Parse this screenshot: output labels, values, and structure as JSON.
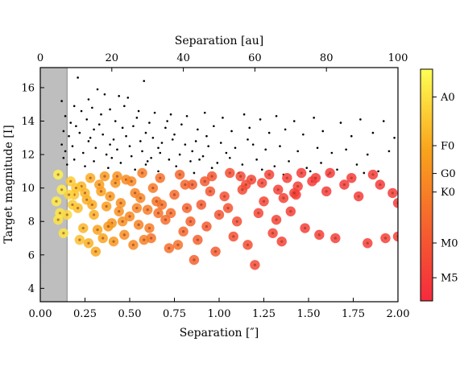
{
  "chart_data": {
    "type": "scatter",
    "xlabel": "Separation [″]",
    "x2label": "Separation [au]",
    "ylabel": "Target magnitude [I]",
    "xlim": [
      0.0,
      2.0
    ],
    "x2lim": [
      0,
      100
    ],
    "ylim": [
      3.2,
      17.2
    ],
    "xticks": [
      "0.00",
      "0.25",
      "0.50",
      "0.75",
      "1.00",
      "1.25",
      "1.50",
      "1.75",
      "2.00"
    ],
    "x2ticks": [
      "0",
      "20",
      "40",
      "60",
      "80",
      "100"
    ],
    "yticks": [
      "4",
      "6",
      "8",
      "10",
      "12",
      "14",
      "16"
    ],
    "excluded_region": {
      "x_range": [
        0.0,
        0.15
      ],
      "color": "#bebebe"
    },
    "grid": false,
    "colorbar": {
      "label_ticks": [
        "A0",
        "F0",
        "G0",
        "K0",
        "M0",
        "M5"
      ],
      "tick_positions": [
        0.12,
        0.33,
        0.45,
        0.53,
        0.75,
        0.9
      ],
      "colors": [
        "#ffff55",
        "#f9a31c",
        "#f55e2f",
        "#f52b3d"
      ]
    },
    "series": [
      {
        "kind": "companion-candidates",
        "color": "#000000",
        "points": [
          [
            0.21,
            16.6
          ],
          [
            0.58,
            16.4
          ],
          [
            0.32,
            15.9
          ],
          [
            0.36,
            15.6
          ],
          [
            0.44,
            15.5
          ],
          [
            0.12,
            15.2
          ],
          [
            0.27,
            15.3
          ],
          [
            0.49,
            15.4
          ],
          [
            0.19,
            14.9
          ],
          [
            0.23,
            14.6
          ],
          [
            0.29,
            14.8
          ],
          [
            0.39,
            14.7
          ],
          [
            0.47,
            14.9
          ],
          [
            0.55,
            14.6
          ],
          [
            0.64,
            14.5
          ],
          [
            0.73,
            14.4
          ],
          [
            0.82,
            14.3
          ],
          [
            0.92,
            14.5
          ],
          [
            1.02,
            14.2
          ],
          [
            1.14,
            14.4
          ],
          [
            1.23,
            14.1
          ],
          [
            1.32,
            14.3
          ],
          [
            1.42,
            14.0
          ],
          [
            1.53,
            14.2
          ],
          [
            1.68,
            13.9
          ],
          [
            1.79,
            14.1
          ],
          [
            1.92,
            14.0
          ],
          [
            0.14,
            14.3
          ],
          [
            0.17,
            13.9
          ],
          [
            0.26,
            14.1
          ],
          [
            0.33,
            13.8
          ],
          [
            0.42,
            14.0
          ],
          [
            0.52,
            13.7
          ],
          [
            0.61,
            13.9
          ],
          [
            0.7,
            13.6
          ],
          [
            0.79,
            13.8
          ],
          [
            0.88,
            13.5
          ],
          [
            0.97,
            13.7
          ],
          [
            1.07,
            13.4
          ],
          [
            1.17,
            13.6
          ],
          [
            1.28,
            13.3
          ],
          [
            1.37,
            13.5
          ],
          [
            1.47,
            13.2
          ],
          [
            1.58,
            13.4
          ],
          [
            1.74,
            13.1
          ],
          [
            1.86,
            13.3
          ],
          [
            1.98,
            13.0
          ],
          [
            0.13,
            13.4
          ],
          [
            0.16,
            13.1
          ],
          [
            0.22,
            13.3
          ],
          [
            0.28,
            13.0
          ],
          [
            0.35,
            13.2
          ],
          [
            0.41,
            12.9
          ],
          [
            0.48,
            13.1
          ],
          [
            0.56,
            12.8
          ],
          [
            0.63,
            13.0
          ],
          [
            0.68,
            12.7
          ],
          [
            0.74,
            12.9
          ],
          [
            0.81,
            12.6
          ],
          [
            0.87,
            12.8
          ],
          [
            0.94,
            12.5
          ],
          [
            1.01,
            12.7
          ],
          [
            1.09,
            12.4
          ],
          [
            1.19,
            12.6
          ],
          [
            1.26,
            12.3
          ],
          [
            1.34,
            12.5
          ],
          [
            1.44,
            12.2
          ],
          [
            1.55,
            12.4
          ],
          [
            1.63,
            12.1
          ],
          [
            1.71,
            12.3
          ],
          [
            1.83,
            12.0
          ],
          [
            1.95,
            12.2
          ],
          [
            0.12,
            12.6
          ],
          [
            0.14,
            12.2
          ],
          [
            0.18,
            12.5
          ],
          [
            0.24,
            12.1
          ],
          [
            0.31,
            12.4
          ],
          [
            0.37,
            12.0
          ],
          [
            0.43,
            12.3
          ],
          [
            0.51,
            11.9
          ],
          [
            0.57,
            12.2
          ],
          [
            0.62,
            11.8
          ],
          [
            0.67,
            12.1
          ],
          [
            0.72,
            11.7
          ],
          [
            0.78,
            12.0
          ],
          [
            0.84,
            11.6
          ],
          [
            0.91,
            11.9
          ],
          [
            0.99,
            11.5
          ],
          [
            1.06,
            11.8
          ],
          [
            1.13,
            11.4
          ],
          [
            1.21,
            11.7
          ],
          [
            1.31,
            11.3
          ],
          [
            1.39,
            11.6
          ],
          [
            1.49,
            11.2
          ],
          [
            1.57,
            11.5
          ],
          [
            1.66,
            11.1
          ],
          [
            1.77,
            11.4
          ],
          [
            1.89,
            11.0
          ],
          [
            0.13,
            11.8
          ],
          [
            0.15,
            11.4
          ],
          [
            0.19,
            11.7
          ],
          [
            0.25,
            11.3
          ],
          [
            0.3,
            11.6
          ],
          [
            0.38,
            11.2
          ],
          [
            0.45,
            11.5
          ],
          [
            0.53,
            11.1
          ],
          [
            0.59,
            11.4
          ],
          [
            0.66,
            11.0
          ],
          [
            0.76,
            11.3
          ],
          [
            0.86,
            10.9
          ],
          [
            0.96,
            11.2
          ],
          [
            1.11,
            10.9
          ],
          [
            1.24,
            11.1
          ],
          [
            1.36,
            10.8
          ],
          [
            1.51,
            11.0
          ],
          [
            1.61,
            10.8
          ],
          [
            1.81,
            10.9
          ],
          [
            0.46,
            13.6
          ],
          [
            0.54,
            14.2
          ],
          [
            0.39,
            12.6
          ],
          [
            0.27,
            12.8
          ],
          [
            0.34,
            14.4
          ],
          [
            0.59,
            13.3
          ],
          [
            0.66,
            12.4
          ],
          [
            0.71,
            14.0
          ],
          [
            0.85,
            12.2
          ],
          [
            0.93,
            13.1
          ],
          [
            1.04,
            12.1
          ],
          [
            0.2,
            13.7
          ],
          [
            0.4,
            11.8
          ],
          [
            0.5,
            12.5
          ],
          [
            0.6,
            11.6
          ],
          [
            0.75,
            13.2
          ],
          [
            0.89,
            11.7
          ],
          [
            0.3,
            13.5
          ],
          [
            1.16,
            12.9
          ]
        ]
      },
      {
        "kind": "targets",
        "points": [
          [
            0.1,
            10.8,
            0.05
          ],
          [
            0.12,
            9.9,
            0.06
          ],
          [
            0.09,
            9.2,
            0.07
          ],
          [
            0.11,
            8.5,
            0.08
          ],
          [
            0.13,
            7.3,
            0.1
          ],
          [
            0.1,
            8.1,
            0.1
          ],
          [
            0.17,
            10.4,
            0.2
          ],
          [
            0.19,
            9.6,
            0.22
          ],
          [
            0.21,
            8.8,
            0.25
          ],
          [
            0.23,
            10.1,
            0.28
          ],
          [
            0.22,
            6.9,
            0.24
          ],
          [
            0.26,
            9.3,
            0.3
          ],
          [
            0.28,
            10.6,
            0.32
          ],
          [
            0.3,
            8.4,
            0.3
          ],
          [
            0.32,
            7.5,
            0.35
          ],
          [
            0.31,
            6.2,
            0.33
          ],
          [
            0.34,
            9.8,
            0.36
          ],
          [
            0.36,
            10.7,
            0.4
          ],
          [
            0.37,
            8.9,
            0.38
          ],
          [
            0.39,
            9.5,
            0.4
          ],
          [
            0.4,
            7.9,
            0.42
          ],
          [
            0.42,
            10.3,
            0.42
          ],
          [
            0.44,
            8.6,
            0.44
          ],
          [
            0.45,
            9.1,
            0.45
          ],
          [
            0.47,
            7.2,
            0.46
          ],
          [
            0.48,
            10.5,
            0.47
          ],
          [
            0.5,
            8.3,
            0.48
          ],
          [
            0.52,
            6.6,
            0.48
          ],
          [
            0.53,
            9.7,
            0.5
          ],
          [
            0.55,
            7.8,
            0.52
          ],
          [
            0.57,
            10.9,
            0.55
          ],
          [
            0.6,
            8.7,
            0.55
          ],
          [
            0.62,
            7.0,
            0.58
          ],
          [
            0.65,
            9.2,
            0.58
          ],
          [
            0.67,
            10.6,
            0.6
          ],
          [
            0.7,
            8.1,
            0.62
          ],
          [
            0.72,
            6.4,
            0.62
          ],
          [
            0.75,
            9.6,
            0.64
          ],
          [
            0.78,
            10.8,
            0.66
          ],
          [
            0.8,
            7.4,
            0.65
          ],
          [
            0.82,
            8.8,
            0.68
          ],
          [
            0.85,
            10.2,
            0.7
          ],
          [
            0.88,
            6.9,
            0.68
          ],
          [
            0.9,
            9.0,
            0.72
          ],
          [
            0.93,
            7.7,
            0.72
          ],
          [
            0.96,
            10.7,
            0.75
          ],
          [
            0.98,
            6.2,
            0.72
          ],
          [
            1.0,
            8.4,
            0.76
          ],
          [
            1.03,
            9.5,
            0.78
          ],
          [
            1.06,
            10.9,
            0.8
          ],
          [
            1.08,
            7.1,
            0.78
          ],
          [
            1.1,
            8.0,
            0.8
          ],
          [
            1.13,
            9.9,
            0.82
          ],
          [
            1.16,
            6.6,
            0.8
          ],
          [
            1.18,
            10.5,
            0.84
          ],
          [
            1.2,
            5.4,
            0.82
          ],
          [
            1.22,
            8.5,
            0.84
          ],
          [
            1.25,
            9.2,
            0.85
          ],
          [
            1.28,
            10.8,
            0.86
          ],
          [
            1.3,
            7.3,
            0.85
          ],
          [
            1.33,
            9.9,
            0.87
          ],
          [
            1.35,
            6.8,
            0.86
          ],
          [
            1.38,
            10.6,
            0.88
          ],
          [
            1.4,
            8.6,
            0.88
          ],
          [
            1.43,
            9.6,
            0.89
          ],
          [
            1.46,
            10.9,
            0.9
          ],
          [
            1.48,
            7.6,
            0.89
          ],
          [
            1.52,
            10.4,
            0.9
          ],
          [
            1.56,
            7.2,
            0.88
          ],
          [
            1.6,
            9.8,
            0.9
          ],
          [
            1.65,
            7.0,
            0.89
          ],
          [
            1.7,
            10.2,
            0.92
          ],
          [
            1.74,
            10.6,
            0.9
          ],
          [
            1.78,
            9.5,
            0.9
          ],
          [
            1.83,
            6.7,
            0.88
          ],
          [
            1.86,
            10.8,
            0.9
          ],
          [
            1.9,
            10.2,
            0.91
          ],
          [
            1.93,
            7.0,
            0.88
          ],
          [
            1.97,
            9.7,
            0.9
          ],
          [
            2.0,
            7.1,
            0.88
          ],
          [
            2.0,
            9.1,
            0.9
          ],
          [
            0.24,
            7.6,
            0.28
          ],
          [
            0.27,
            6.7,
            0.3
          ],
          [
            0.35,
            7.0,
            0.35
          ],
          [
            0.41,
            6.8,
            0.4
          ],
          [
            0.58,
            6.9,
            0.52
          ],
          [
            0.77,
            6.6,
            0.6
          ],
          [
            0.86,
            5.7,
            0.68
          ],
          [
            1.05,
            8.8,
            0.76
          ],
          [
            1.15,
            10.2,
            0.82
          ],
          [
            0.33,
            10.2,
            0.38
          ],
          [
            0.43,
            10.7,
            0.43
          ],
          [
            0.38,
            7.7,
            0.4
          ],
          [
            0.46,
            8.0,
            0.44
          ],
          [
            0.56,
            9.4,
            0.5
          ],
          [
            0.63,
            10.0,
            0.56
          ],
          [
            0.68,
            9.0,
            0.6
          ],
          [
            0.73,
            8.5,
            0.62
          ],
          [
            0.92,
            10.4,
            0.72
          ],
          [
            1.24,
            10.3,
            0.84
          ],
          [
            1.36,
            9.4,
            0.86
          ],
          [
            1.44,
            10.1,
            0.88
          ],
          [
            0.18,
            9.0,
            0.2
          ],
          [
            0.2,
            10.0,
            0.22
          ],
          [
            0.25,
            9.7,
            0.28
          ],
          [
            0.29,
            9.0,
            0.32
          ],
          [
            0.51,
            10.4,
            0.48
          ],
          [
            0.54,
            8.8,
            0.5
          ],
          [
            0.61,
            7.6,
            0.55
          ],
          [
            0.81,
            10.2,
            0.66
          ],
          [
            1.12,
            10.7,
            0.82
          ],
          [
            1.62,
            10.9,
            0.9
          ],
          [
            0.15,
            8.4,
            0.15
          ],
          [
            0.16,
            9.6,
            0.16
          ],
          [
            0.84,
            8.0,
            0.68
          ],
          [
            0.95,
            9.8,
            0.74
          ],
          [
            1.32,
            8.1,
            0.86
          ],
          [
            1.42,
            9.7,
            0.88
          ],
          [
            1.54,
            10.6,
            0.9
          ],
          [
            0.66,
            8.5,
            0.6
          ]
        ]
      }
    ]
  }
}
